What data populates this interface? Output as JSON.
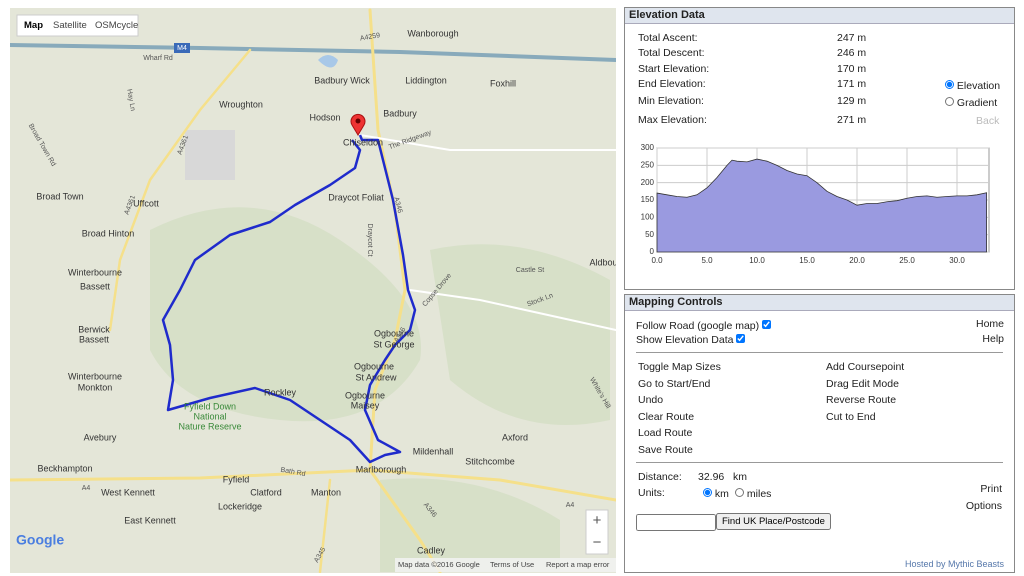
{
  "map": {
    "tabs": [
      "Map",
      "Satellite",
      "OSMcycle"
    ],
    "labels": [
      "Wanborough",
      "Badbury Wick",
      "Liddington",
      "Foxhill",
      "Wroughton",
      "Badbury",
      "Hodson",
      "Chiseldon",
      "Broad Town",
      "Uffcott",
      "Draycot Foliat",
      "Broad Hinton",
      "Winterbourne",
      "Bassett",
      "Berwick",
      "Bassett",
      "Ogbourne",
      "St George",
      "Winterbourne",
      "Monkton",
      "Ogbourne",
      "St Andrew",
      "Rockley",
      "Ogbourne",
      "Maisey",
      "Fyfield Down",
      "National",
      "Nature Reserve",
      "Avebury",
      "Axford",
      "Mildenhall",
      "Stitchcombe",
      "Beckhampton",
      "Marlborough",
      "Fyfield",
      "West Kennett",
      "Clatford",
      "Manton",
      "Lockeridge",
      "East Kennett",
      "Cadley",
      "Aldbourne"
    ],
    "road_labels": [
      "A4259",
      "Wharf Rd",
      "Hay Ln",
      "A4361",
      "Broad Town Rd",
      "The Ridgeway",
      "A346",
      "Draycot Ct",
      "A4361",
      "Copse Drove",
      "Castle St",
      "Stock Ln",
      "A346",
      "White's Hill",
      "Bath Rd",
      "A4",
      "A4",
      "A346",
      "A345",
      "M4"
    ],
    "logo": "Google",
    "zoom": [
      "+",
      "−"
    ],
    "attribution": [
      "Map data ©2016 Google",
      "Terms of Use",
      "Report a map error"
    ]
  },
  "elevation_panel": {
    "title": "Elevation Data",
    "stats": [
      [
        "Total Ascent:",
        "247 m"
      ],
      [
        "Total Descent:",
        "246 m"
      ],
      [
        "Start Elevation:",
        "170 m"
      ],
      [
        "End Elevation:",
        "171 m"
      ],
      [
        "Min Elevation:",
        "129 m"
      ],
      [
        "Max Elevation:",
        "271 m"
      ]
    ],
    "options": [
      "Elevation",
      "Gradient"
    ],
    "back": "Back"
  },
  "chart_data": {
    "type": "area",
    "x": [
      0,
      1,
      2,
      3,
      4,
      5,
      6,
      7,
      7.5,
      8,
      9,
      10,
      11,
      12,
      13,
      14,
      15,
      16,
      17,
      18,
      19,
      20,
      21,
      22,
      23,
      24,
      25,
      26,
      27,
      28,
      29,
      30,
      31,
      32,
      32.96
    ],
    "series": [
      {
        "color": "#9a9ae0",
        "values": [
          170,
          165,
          160,
          158,
          165,
          185,
          215,
          250,
          265,
          262,
          260,
          268,
          262,
          250,
          235,
          225,
          220,
          200,
          175,
          160,
          150,
          135,
          140,
          140,
          145,
          148,
          155,
          160,
          162,
          158,
          160,
          162,
          162,
          165,
          171
        ]
      }
    ],
    "xlim": [
      0,
      33.2
    ],
    "ylim": [
      0,
      300
    ],
    "xticks": [
      {
        "value": 0,
        "label": "0.0"
      },
      {
        "value": 5,
        "label": "5.0"
      },
      {
        "value": 10,
        "label": "10.0"
      },
      {
        "value": 15,
        "label": "15.0"
      },
      {
        "value": 20,
        "label": "20.0"
      },
      {
        "value": 25,
        "label": "25.0"
      },
      {
        "value": 30,
        "label": "30.0"
      }
    ],
    "yticks": [
      0,
      50,
      100,
      150,
      200,
      250,
      300
    ],
    "grid": true
  },
  "controls": {
    "title": "Mapping Controls",
    "follow_road": "Follow Road (google map)",
    "show_elevation": "Show Elevation Data",
    "home": "Home",
    "help": "Help",
    "left_links": [
      "Toggle Map Sizes",
      "Go to Start/End",
      "Undo",
      "Clear Route",
      "Load Route",
      "Save Route"
    ],
    "right_links": [
      "Add Coursepoint",
      "Drag Edit Mode",
      "Reverse Route",
      "Cut to End"
    ],
    "distance_label": "Distance:",
    "distance": "32.96",
    "distance_unit": "km",
    "units_label": "Units:",
    "units": [
      "km",
      "miles"
    ],
    "print": "Print",
    "options": "Options",
    "find_button": "Find UK Place/Postcode",
    "hosted": "Hosted by Mythic Beasts"
  }
}
